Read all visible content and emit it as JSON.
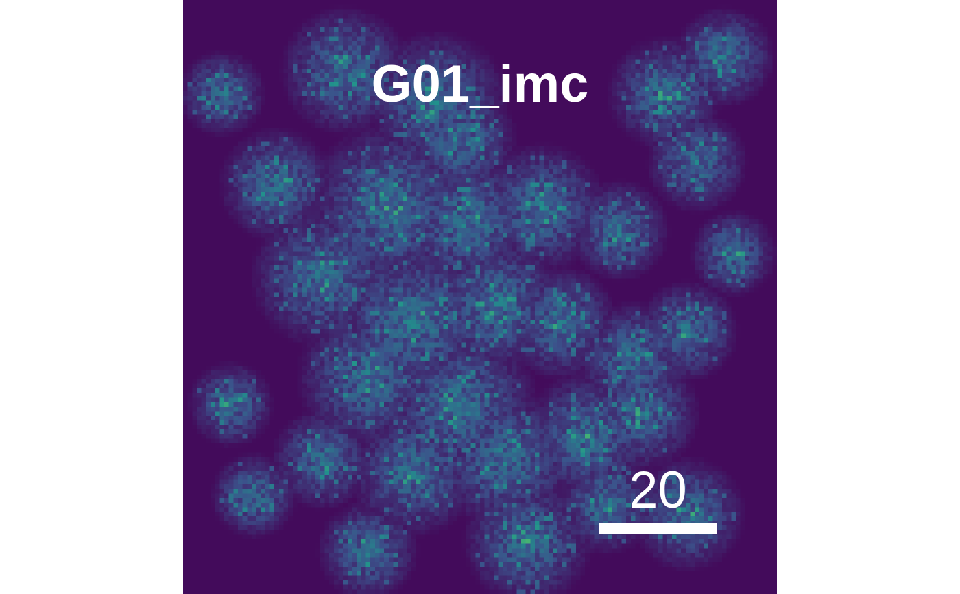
{
  "image": {
    "title": "G01_imc",
    "colormap": "viridis",
    "scale_bar_label": "20"
  },
  "colors": {
    "background": "#440154",
    "low": "#46085c",
    "mid": "#31688e",
    "high": "#21918c",
    "peak": "#35b779",
    "text": "#ffffff"
  }
}
